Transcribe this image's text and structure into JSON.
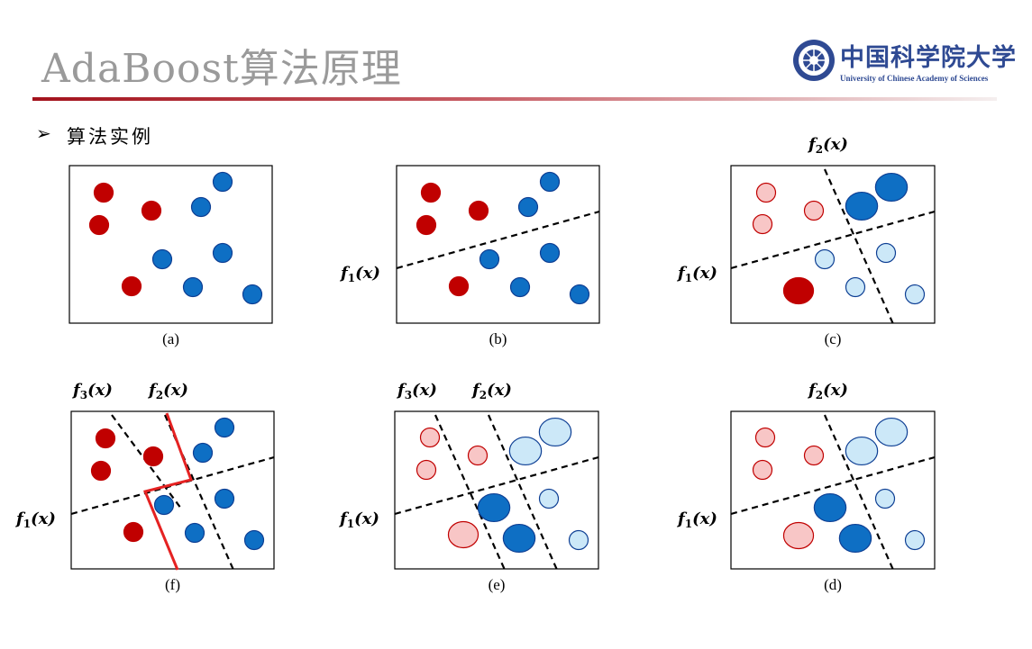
{
  "header": {
    "title": "AdaBoost算法原理",
    "logo_cn": "中国科学院大学",
    "logo_en": "University of Chinese Academy of Sciences"
  },
  "section": {
    "bullet": "➢",
    "heading": "算法实例"
  },
  "colors": {
    "red_strong": "#c00000",
    "red_light": "#f8c6c6",
    "red_edge": "#c00000",
    "blue_strong": "#0e6fc4",
    "blue_light": "#cce8f8",
    "blue_edge": "#0e3f94",
    "divider_red": "#e52222"
  },
  "labels": {
    "f1": [
      "f",
      "1",
      "(x)"
    ],
    "f2": [
      "f",
      "2",
      "(x)"
    ],
    "f3": [
      "f",
      "3",
      "(x)"
    ]
  },
  "panels": [
    {
      "id": "a",
      "caption": "(a)",
      "points": [
        {
          "cls": "red",
          "w": "strong",
          "size": 1
        },
        {
          "cls": "red",
          "w": "strong",
          "size": 1
        },
        {
          "cls": "red",
          "w": "strong",
          "size": 1
        },
        {
          "cls": "red",
          "w": "strong",
          "size": 1
        },
        {
          "cls": "blue",
          "w": "strong",
          "size": 1
        },
        {
          "cls": "blue",
          "w": "strong",
          "size": 1
        },
        {
          "cls": "blue",
          "w": "strong",
          "size": 1
        },
        {
          "cls": "blue",
          "w": "strong",
          "size": 1
        },
        {
          "cls": "blue",
          "w": "strong",
          "size": 1
        },
        {
          "cls": "blue",
          "w": "strong",
          "size": 1
        }
      ]
    },
    {
      "id": "b",
      "caption": "(b)",
      "classifiers": [
        "f1"
      ],
      "points": [
        {
          "cls": "red",
          "w": "strong",
          "size": 1
        },
        {
          "cls": "red",
          "w": "strong",
          "size": 1
        },
        {
          "cls": "red",
          "w": "strong",
          "size": 1
        },
        {
          "cls": "red",
          "w": "strong",
          "size": 1
        },
        {
          "cls": "blue",
          "w": "strong",
          "size": 1
        },
        {
          "cls": "blue",
          "w": "strong",
          "size": 1
        },
        {
          "cls": "blue",
          "w": "strong",
          "size": 1
        },
        {
          "cls": "blue",
          "w": "strong",
          "size": 1
        },
        {
          "cls": "blue",
          "w": "strong",
          "size": 1
        },
        {
          "cls": "blue",
          "w": "strong",
          "size": 1
        }
      ]
    },
    {
      "id": "c",
      "caption": "(c)",
      "classifiers": [
        "f1",
        "f2"
      ],
      "points": [
        {
          "cls": "red",
          "w": "light",
          "size": 1
        },
        {
          "cls": "red",
          "w": "light",
          "size": 1
        },
        {
          "cls": "red",
          "w": "light",
          "size": 1
        },
        {
          "cls": "red",
          "w": "strong",
          "size": 1.5
        },
        {
          "cls": "blue",
          "w": "strong",
          "size": 1.6
        },
        {
          "cls": "blue",
          "w": "strong",
          "size": 1.6
        },
        {
          "cls": "blue",
          "w": "light",
          "size": 1
        },
        {
          "cls": "blue",
          "w": "light",
          "size": 1
        },
        {
          "cls": "blue",
          "w": "light",
          "size": 1
        },
        {
          "cls": "blue",
          "w": "light",
          "size": 1
        }
      ]
    },
    {
      "id": "f",
      "caption": "(f)",
      "classifiers": [
        "f1",
        "f2",
        "f3"
      ],
      "points": [
        {
          "cls": "red",
          "w": "strong",
          "size": 1
        },
        {
          "cls": "red",
          "w": "strong",
          "size": 1
        },
        {
          "cls": "red",
          "w": "strong",
          "size": 1
        },
        {
          "cls": "red",
          "w": "strong",
          "size": 1
        },
        {
          "cls": "blue",
          "w": "strong",
          "size": 1
        },
        {
          "cls": "blue",
          "w": "strong",
          "size": 1
        },
        {
          "cls": "blue",
          "w": "strong",
          "size": 1
        },
        {
          "cls": "blue",
          "w": "strong",
          "size": 1
        },
        {
          "cls": "blue",
          "w": "strong",
          "size": 1
        },
        {
          "cls": "blue",
          "w": "strong",
          "size": 1
        }
      ]
    },
    {
      "id": "e",
      "caption": "(e)",
      "classifiers": [
        "f1",
        "f2",
        "f3"
      ],
      "points": [
        {
          "cls": "red",
          "w": "light",
          "size": 1
        },
        {
          "cls": "red",
          "w": "light",
          "size": 1
        },
        {
          "cls": "red",
          "w": "light",
          "size": 1
        },
        {
          "cls": "red",
          "w": "light",
          "size": 1.5
        },
        {
          "cls": "blue",
          "w": "light",
          "size": 1.6
        },
        {
          "cls": "blue",
          "w": "light",
          "size": 1.6
        },
        {
          "cls": "blue",
          "w": "strong",
          "size": 1.6
        },
        {
          "cls": "blue",
          "w": "strong",
          "size": 1.6
        },
        {
          "cls": "blue",
          "w": "light",
          "size": 1
        },
        {
          "cls": "blue",
          "w": "light",
          "size": 1
        }
      ]
    },
    {
      "id": "d",
      "caption": "(d)",
      "classifiers": [
        "f1",
        "f2"
      ],
      "points": [
        {
          "cls": "red",
          "w": "light",
          "size": 1
        },
        {
          "cls": "red",
          "w": "light",
          "size": 1
        },
        {
          "cls": "red",
          "w": "light",
          "size": 1
        },
        {
          "cls": "red",
          "w": "light",
          "size": 1.5
        },
        {
          "cls": "blue",
          "w": "light",
          "size": 1.6
        },
        {
          "cls": "blue",
          "w": "light",
          "size": 1.6
        },
        {
          "cls": "blue",
          "w": "strong",
          "size": 1.6
        },
        {
          "cls": "blue",
          "w": "strong",
          "size": 1.6
        },
        {
          "cls": "blue",
          "w": "light",
          "size": 1
        },
        {
          "cls": "blue",
          "w": "light",
          "size": 1
        }
      ]
    }
  ]
}
